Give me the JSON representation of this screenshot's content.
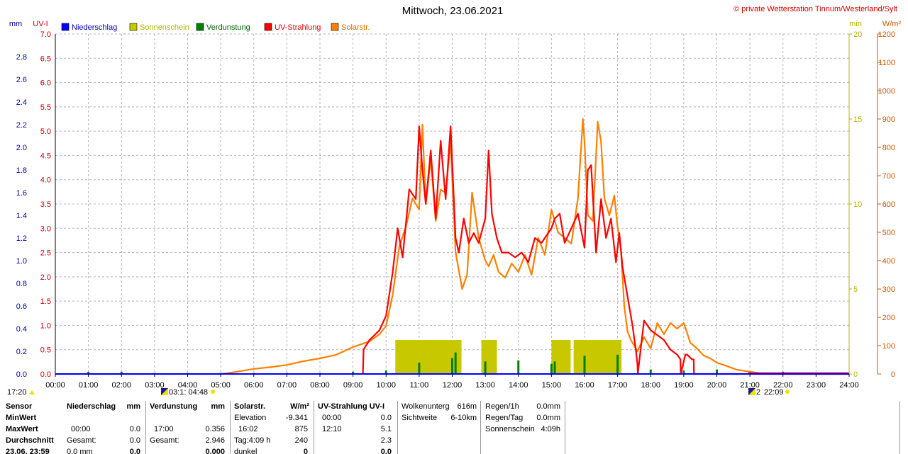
{
  "title": "Mittwoch, 23.06.2021",
  "copyright": "© private Wetterstation Tinnum/Westerland/Sylt",
  "axis_units": {
    "left_outer": "mm",
    "left_inner": "UV-I",
    "right_inner": "min",
    "right_outer": "W/m²"
  },
  "legend": [
    {
      "label": "Niederschlag",
      "color": "#0000ff",
      "text_color": "#0000aa"
    },
    {
      "label": "Sonnenschein",
      "color": "#c8c800",
      "text_color": "#b4b400"
    },
    {
      "label": "Verdunstung",
      "color": "#008000",
      "text_color": "#006000"
    },
    {
      "label": "UV-Strahlung",
      "color": "#ff0000",
      "text_color": "#e00000"
    },
    {
      "label": "Solarstr.",
      "color": "#ff8000",
      "text_color": "#e07000"
    }
  ],
  "chart_data": {
    "type": "line",
    "title": "Mittwoch, 23.06.2021",
    "x_ticks": [
      "00:00",
      "01:00",
      "02:00",
      "03:00",
      "04:00",
      "05:00",
      "06:00",
      "07:00",
      "08:00",
      "09:00",
      "10:00",
      "11:00",
      "12:00",
      "13:00",
      "14:00",
      "15:00",
      "16:00",
      "17:00",
      "18:00",
      "19:00",
      "20:00",
      "21:00",
      "22:00",
      "23:00",
      "24:00"
    ],
    "y_axes": {
      "precip_mm": {
        "ticks": [
          "0.0",
          "0.2",
          "0.4",
          "0.6",
          "0.8",
          "1.0",
          "1.2",
          "1.4",
          "1.6",
          "1.8",
          "2.0",
          "2.2",
          "2.4",
          "2.6",
          "2.8"
        ],
        "range": [
          0,
          3.0
        ]
      },
      "uv_index": {
        "ticks": [
          "0.0",
          "0.5",
          "1.0",
          "1.5",
          "2.0",
          "2.5",
          "3.0",
          "3.5",
          "4.0",
          "4.5",
          "5.0",
          "5.5",
          "6.0",
          "6.5",
          "7.0"
        ],
        "range": [
          0,
          7.0
        ]
      },
      "sunshine_min": {
        "ticks": [
          "0",
          "5",
          "10",
          "15",
          "20"
        ],
        "range": [
          0,
          20
        ]
      },
      "solar_wm2": {
        "ticks": [
          "0",
          "100",
          "200",
          "300",
          "400",
          "500",
          "600",
          "700",
          "800",
          "900",
          "1000",
          "1100",
          "1200"
        ],
        "range": [
          0,
          1200
        ]
      }
    },
    "series": [
      {
        "name": "Solarstr.",
        "unit": "W/m²",
        "axis": "solar_wm2",
        "color": "#ff8000",
        "x": [
          0,
          5.0,
          5.5,
          6.0,
          6.5,
          7.0,
          7.5,
          8.0,
          8.5,
          9.0,
          9.5,
          9.8,
          10.0,
          10.2,
          10.4,
          10.6,
          10.8,
          11.0,
          11.1,
          11.2,
          11.35,
          11.5,
          11.65,
          11.8,
          11.95,
          12.1,
          12.3,
          12.45,
          12.6,
          12.8,
          13.0,
          13.1,
          13.25,
          13.4,
          13.6,
          13.8,
          14.0,
          14.2,
          14.4,
          14.6,
          14.8,
          15.0,
          15.2,
          15.4,
          15.6,
          15.8,
          15.95,
          16.0,
          16.1,
          16.25,
          16.4,
          16.5,
          16.6,
          16.75,
          16.9,
          17.0,
          17.1,
          17.2,
          17.3,
          17.4,
          17.6,
          17.8,
          18.0,
          18.2,
          18.4,
          18.6,
          18.8,
          19.0,
          19.2,
          19.4,
          19.6,
          19.8,
          20.0,
          20.3,
          20.6,
          21.0,
          21.3,
          21.6,
          21.9,
          22.1,
          24.0
        ],
        "y": [
          0,
          0,
          8,
          18,
          24,
          32,
          45,
          55,
          68,
          95,
          115,
          140,
          170,
          280,
          450,
          520,
          620,
          580,
          880,
          600,
          760,
          540,
          650,
          640,
          820,
          430,
          300,
          350,
          640,
          480,
          400,
          380,
          420,
          360,
          340,
          390,
          360,
          420,
          350,
          480,
          420,
          580,
          500,
          480,
          460,
          620,
          900,
          820,
          560,
          540,
          890,
          820,
          620,
          560,
          630,
          520,
          440,
          240,
          150,
          120,
          80,
          130,
          90,
          180,
          140,
          180,
          160,
          180,
          110,
          90,
          65,
          55,
          40,
          28,
          15,
          8,
          3,
          0,
          0,
          0,
          0
        ]
      },
      {
        "name": "UV-Strahlung",
        "unit": "UV-I",
        "axis": "uv_index",
        "color": "#ff0000",
        "x": [
          9.3,
          9.32,
          9.5,
          9.8,
          10.0,
          10.2,
          10.35,
          10.5,
          10.7,
          10.9,
          11.0,
          11.1,
          11.2,
          11.35,
          11.5,
          11.65,
          11.8,
          11.95,
          12.1,
          12.2,
          12.35,
          12.5,
          12.65,
          12.8,
          13.0,
          13.1,
          13.2,
          13.35,
          13.5,
          13.7,
          13.9,
          14.1,
          14.3,
          14.5,
          14.7,
          14.9,
          15.0,
          15.1,
          15.25,
          15.4,
          15.6,
          15.8,
          16.0,
          16.1,
          16.2,
          16.35,
          16.5,
          16.65,
          16.8,
          16.95,
          17.05,
          17.15,
          17.3,
          17.45,
          17.55,
          17.6,
          17.61,
          17.8,
          18.0,
          18.2,
          18.4,
          18.6,
          18.8,
          18.9,
          18.91,
          19.05,
          19.1,
          19.25,
          19.3,
          19.31,
          21.0,
          24.0
        ],
        "y": [
          0,
          0.5,
          0.7,
          0.9,
          1.2,
          2.1,
          3.0,
          2.4,
          3.8,
          3.6,
          5.1,
          4.2,
          3.5,
          4.6,
          3.2,
          4.8,
          3.6,
          5.1,
          2.8,
          2.5,
          3.2,
          2.7,
          2.9,
          2.7,
          3.2,
          4.6,
          3.3,
          2.8,
          2.5,
          2.5,
          2.4,
          2.5,
          2.3,
          2.8,
          2.7,
          2.9,
          3.0,
          3.2,
          3.3,
          2.7,
          3.0,
          3.3,
          2.6,
          4.2,
          4.3,
          2.5,
          3.6,
          2.8,
          3.2,
          2.3,
          2.9,
          2.2,
          1.6,
          1.0,
          0.5,
          0.2,
          0,
          1.1,
          0.9,
          0.8,
          0.7,
          0.5,
          0.4,
          0.3,
          0,
          0.4,
          0.4,
          0.3,
          0.3,
          0,
          0,
          0
        ]
      }
    ],
    "sunshine_blocks": [
      {
        "from": 10.28,
        "to": 12.28,
        "value": 2
      },
      {
        "from": 12.88,
        "to": 13.35,
        "value": 2
      },
      {
        "from": 15.0,
        "to": 15.58,
        "value": 2
      },
      {
        "from": 15.67,
        "to": 16.0,
        "value": 2
      },
      {
        "from": 16.0,
        "to": 17.12,
        "value": 2
      }
    ],
    "evaporation_ticks": [
      {
        "x": 1.0,
        "v": 0.02
      },
      {
        "x": 2.0,
        "v": 0.02
      },
      {
        "x": 3.0,
        "v": 0.01
      },
      {
        "x": 4.0,
        "v": 0.01
      },
      {
        "x": 5.0,
        "v": 0.01
      },
      {
        "x": 6.0,
        "v": 0.01
      },
      {
        "x": 7.0,
        "v": 0.01
      },
      {
        "x": 8.0,
        "v": 0.01
      },
      {
        "x": 9.0,
        "v": 0.02
      },
      {
        "x": 10.0,
        "v": 0.03
      },
      {
        "x": 11.0,
        "v": 0.1
      },
      {
        "x": 12.0,
        "v": 0.14
      },
      {
        "x": 12.1,
        "v": 0.19
      },
      {
        "x": 13.0,
        "v": 0.11
      },
      {
        "x": 14.0,
        "v": 0.12
      },
      {
        "x": 15.0,
        "v": 0.09
      },
      {
        "x": 15.1,
        "v": 0.11
      },
      {
        "x": 16.0,
        "v": 0.16
      },
      {
        "x": 17.0,
        "v": 0.17
      },
      {
        "x": 18.0,
        "v": 0.04
      },
      {
        "x": 19.0,
        "v": 0.03
      },
      {
        "x": 20.0,
        "v": 0.04
      },
      {
        "x": 21.0,
        "v": 0.02
      },
      {
        "x": 22.0,
        "v": 0.02
      },
      {
        "x": 23.0,
        "v": 0.01
      }
    ],
    "red_baseline": {
      "from": 20.95,
      "to": 24.0
    },
    "grid": true
  },
  "bottom_markers": {
    "left_time": "17:20",
    "sunrise_times": "03:1: 04:48",
    "sunset_time": "22:09",
    "moon_label": "2"
  },
  "stats": {
    "row_labels": [
      "Sensor",
      "MinWert",
      "MaxWert",
      "Durchschnitt",
      "23.06. 23:59"
    ],
    "precip": {
      "header": "Niederschlag",
      "unit": "mm",
      "max_time": "00:00",
      "max_val": "0.0",
      "total_label": "Gesamt:",
      "total_val": "0.0",
      "last_val": "0.0 mm",
      "last_big": "0.0"
    },
    "evap": {
      "header": "Verdunstung",
      "unit": "mm",
      "max_time": "17:00",
      "max_val": "0.356",
      "total_label": "Gesamt:",
      "total_val": "2.946",
      "last_big": "0.000"
    },
    "solar": {
      "header": "Solarstr.",
      "unit": "W/m²",
      "elev_label": "Elevation",
      "elev_val": "-9.341",
      "max_time": "16:02",
      "max_val": "875",
      "day_label": "Tag:4:09 h",
      "day_val": "240",
      "dark_label": "dunkel",
      "dark_val": "0"
    },
    "uv": {
      "header": "UV-Strahlung UV-I",
      "min_time": "00:00",
      "min_val": "0.0",
      "max_time": "12:10",
      "max_val": "5.1",
      "avg_val": "2.3",
      "last_val": "0.0"
    },
    "cloud": {
      "base_label": "Wolkenunterg",
      "base_val": "616m",
      "vis_label": "Sichtweite",
      "vis_val": "6-10km"
    },
    "rain": {
      "r1_label": "Regen/1h",
      "r1_val": "0.0mm",
      "day_label": "Regen/Tag",
      "day_val": "0.0mm",
      "sun_label": "Sonnenschein",
      "sun_val": "4:09h"
    }
  }
}
